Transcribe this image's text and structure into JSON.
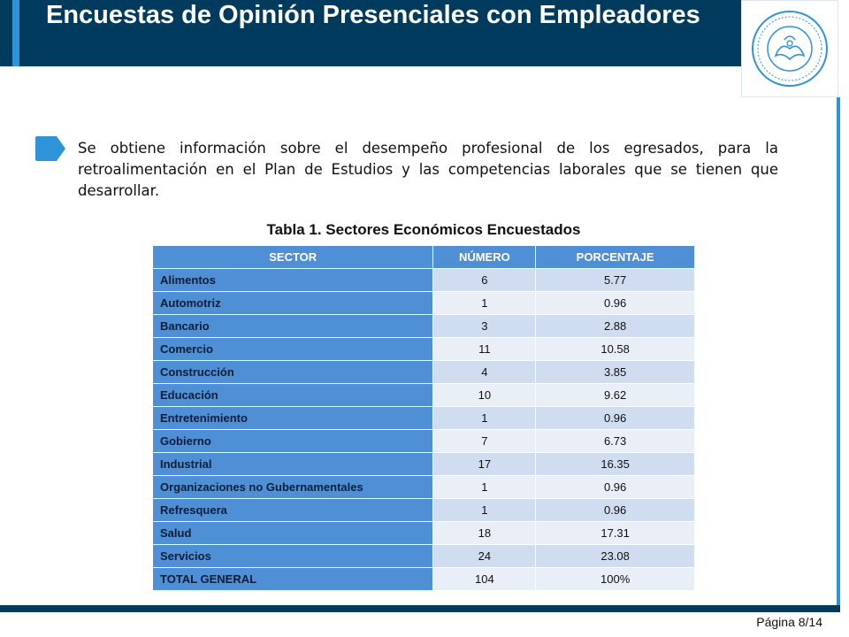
{
  "slide": {
    "title": "Encuestas de Opinión Presenciales con Empleadores",
    "intro": "Se obtiene información sobre el desempeño profesional de los egresados, para la retroalimentación en el Plan de Estudios y las competencias laborales que se tienen que desarrollar.",
    "page_label": "Página 8/14",
    "logo_icon": "university-seal-icon"
  },
  "colors": {
    "header": "#003a5c",
    "accent": "#2e93d8",
    "table_header": "#4f8fd6"
  },
  "table": {
    "title": "Tabla 1. Sectores Económicos Encuestados",
    "headers": [
      "SECTOR",
      "NÚMERO",
      "PORCENTAJE"
    ],
    "rows": [
      {
        "sector": "Alimentos",
        "numero": "6",
        "porcentaje": "5.77"
      },
      {
        "sector": "Automotriz",
        "numero": "1",
        "porcentaje": "0.96"
      },
      {
        "sector": "Bancario",
        "numero": "3",
        "porcentaje": "2.88"
      },
      {
        "sector": "Comercio",
        "numero": "11",
        "porcentaje": "10.58"
      },
      {
        "sector": "Construcción",
        "numero": "4",
        "porcentaje": "3.85"
      },
      {
        "sector": "Educación",
        "numero": "10",
        "porcentaje": "9.62"
      },
      {
        "sector": "Entretenimiento",
        "numero": "1",
        "porcentaje": "0.96"
      },
      {
        "sector": "Gobierno",
        "numero": "7",
        "porcentaje": "6.73"
      },
      {
        "sector": "Industrial",
        "numero": "17",
        "porcentaje": "16.35"
      },
      {
        "sector": "Organizaciones no Gubernamentales",
        "numero": "1",
        "porcentaje": "0.96"
      },
      {
        "sector": "Refresquera",
        "numero": "1",
        "porcentaje": "0.96"
      },
      {
        "sector": "Salud",
        "numero": "18",
        "porcentaje": "17.31"
      },
      {
        "sector": "Servicios",
        "numero": "24",
        "porcentaje": "23.08"
      },
      {
        "sector": "TOTAL GENERAL",
        "numero": "104",
        "porcentaje": "100%"
      }
    ]
  }
}
